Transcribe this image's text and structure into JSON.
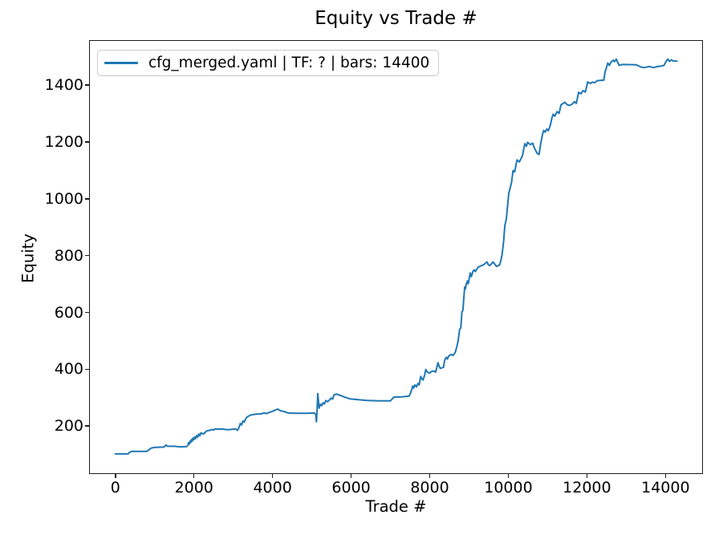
{
  "figure": {
    "title": "Equity vs Trade #",
    "xlabel": "Trade #",
    "ylabel": "Equity"
  },
  "legend": {
    "label": "cfg_merged.yaml | TF: ? | bars: 14400"
  },
  "colors": {
    "line": "#1f77b4",
    "spine": "#1a1a1a",
    "legend_border": "#cbcbcb",
    "text": "#000000"
  },
  "chart_data": {
    "type": "line",
    "title": "Equity vs Trade #",
    "xlabel": "Trade #",
    "ylabel": "Equity",
    "xlim": [
      -649,
      14932
    ],
    "ylim": [
      34,
      1556
    ],
    "x_ticks": [
      0,
      2000,
      4000,
      6000,
      8000,
      10000,
      12000,
      14000
    ],
    "y_ticks": [
      200,
      400,
      600,
      800,
      1000,
      1200,
      1400
    ],
    "grid": false,
    "legend_position": "upper-left",
    "series": [
      {
        "name": "cfg_merged.yaml | TF: ? | bars: 14400",
        "color": "#1f77b4",
        "points": [
          [
            0,
            102
          ],
          [
            320,
            102
          ],
          [
            360,
            107
          ],
          [
            420,
            111
          ],
          [
            800,
            111
          ],
          [
            860,
            117
          ],
          [
            920,
            123
          ],
          [
            1000,
            125
          ],
          [
            1240,
            126
          ],
          [
            1280,
            133
          ],
          [
            1330,
            129
          ],
          [
            1500,
            129
          ],
          [
            1650,
            127
          ],
          [
            1820,
            128
          ],
          [
            1851,
            134
          ],
          [
            1865,
            142
          ],
          [
            1885,
            137
          ],
          [
            1906,
            148
          ],
          [
            1925,
            143
          ],
          [
            1939,
            153
          ],
          [
            1958,
            147
          ],
          [
            1973,
            158
          ],
          [
            2000,
            152
          ],
          [
            2020,
            162
          ],
          [
            2045,
            156
          ],
          [
            2069,
            167
          ],
          [
            2095,
            161
          ],
          [
            2122,
            172
          ],
          [
            2150,
            166
          ],
          [
            2177,
            176
          ],
          [
            2240,
            172
          ],
          [
            2293,
            179
          ],
          [
            2327,
            183
          ],
          [
            2400,
            185
          ],
          [
            2463,
            188
          ],
          [
            2500,
            186
          ],
          [
            2531,
            190
          ],
          [
            2600,
            189
          ],
          [
            2700,
            190
          ],
          [
            2850,
            187
          ],
          [
            3000,
            189
          ],
          [
            3060,
            190
          ],
          [
            3110,
            185
          ],
          [
            3145,
            195
          ],
          [
            3178,
            209
          ],
          [
            3210,
            204
          ],
          [
            3245,
            218
          ],
          [
            3280,
            214
          ],
          [
            3310,
            224
          ],
          [
            3347,
            232
          ],
          [
            3400,
            236
          ],
          [
            3449,
            239
          ],
          [
            3520,
            241
          ],
          [
            3586,
            242
          ],
          [
            3700,
            243
          ],
          [
            3790,
            246
          ],
          [
            3850,
            244
          ],
          [
            3930,
            249
          ],
          [
            4000,
            252
          ],
          [
            4060,
            256
          ],
          [
            4130,
            260
          ],
          [
            4200,
            254
          ],
          [
            4300,
            251
          ],
          [
            4400,
            246
          ],
          [
            4600,
            245
          ],
          [
            4900,
            245
          ],
          [
            5060,
            246
          ],
          [
            5100,
            240
          ],
          [
            5116,
            215
          ],
          [
            5135,
            262
          ],
          [
            5151,
            314
          ],
          [
            5170,
            283
          ],
          [
            5184,
            263
          ],
          [
            5218,
            277
          ],
          [
            5250,
            272
          ],
          [
            5286,
            282
          ],
          [
            5320,
            278
          ],
          [
            5354,
            290
          ],
          [
            5400,
            286
          ],
          [
            5450,
            292
          ],
          [
            5490,
            299
          ],
          [
            5530,
            295
          ],
          [
            5558,
            309
          ],
          [
            5620,
            313
          ],
          [
            5680,
            310
          ],
          [
            5730,
            308
          ],
          [
            5830,
            302
          ],
          [
            5966,
            296
          ],
          [
            6170,
            293
          ],
          [
            6400,
            290
          ],
          [
            6700,
            289
          ],
          [
            7000,
            289
          ],
          [
            7088,
            302
          ],
          [
            7300,
            303
          ],
          [
            7480,
            306
          ],
          [
            7520,
            320
          ],
          [
            7545,
            330
          ],
          [
            7565,
            341
          ],
          [
            7590,
            334
          ],
          [
            7620,
            345
          ],
          [
            7660,
            338
          ],
          [
            7700,
            350
          ],
          [
            7730,
            345
          ],
          [
            7770,
            375
          ],
          [
            7800,
            366
          ],
          [
            7830,
            362
          ],
          [
            7870,
            380
          ],
          [
            7900,
            399
          ],
          [
            7940,
            390
          ],
          [
            7990,
            386
          ],
          [
            8040,
            392
          ],
          [
            8100,
            394
          ],
          [
            8150,
            390
          ],
          [
            8210,
            423
          ],
          [
            8240,
            410
          ],
          [
            8270,
            403
          ],
          [
            8310,
            405
          ],
          [
            8350,
            407
          ],
          [
            8380,
            432
          ],
          [
            8420,
            442
          ],
          [
            8450,
            436
          ],
          [
            8480,
            446
          ],
          [
            8540,
            452
          ],
          [
            8600,
            449
          ],
          [
            8650,
            460
          ],
          [
            8690,
            480
          ],
          [
            8720,
            498
          ],
          [
            8760,
            541
          ],
          [
            8790,
            545
          ],
          [
            8820,
            602
          ],
          [
            8845,
            608
          ],
          [
            8870,
            655
          ],
          [
            8890,
            690
          ],
          [
            8910,
            684
          ],
          [
            8930,
            700
          ],
          [
            8960,
            711
          ],
          [
            8980,
            701
          ],
          [
            9030,
            739
          ],
          [
            9060,
            726
          ],
          [
            9100,
            745
          ],
          [
            9130,
            750
          ],
          [
            9160,
            744
          ],
          [
            9230,
            759
          ],
          [
            9300,
            764
          ],
          [
            9370,
            768
          ],
          [
            9460,
            778
          ],
          [
            9490,
            768
          ],
          [
            9530,
            765
          ],
          [
            9610,
            778
          ],
          [
            9650,
            771
          ],
          [
            9700,
            762
          ],
          [
            9780,
            768
          ],
          [
            9810,
            783
          ],
          [
            9840,
            802
          ],
          [
            9880,
            850
          ],
          [
            9910,
            905
          ],
          [
            9950,
            930
          ],
          [
            9980,
            975
          ],
          [
            10010,
            1019
          ],
          [
            10050,
            1040
          ],
          [
            10080,
            1057
          ],
          [
            10120,
            1100
          ],
          [
            10160,
            1095
          ],
          [
            10220,
            1137
          ],
          [
            10280,
            1130
          ],
          [
            10360,
            1152
          ],
          [
            10420,
            1194
          ],
          [
            10460,
            1185
          ],
          [
            10490,
            1199
          ],
          [
            10560,
            1191
          ],
          [
            10620,
            1196
          ],
          [
            10660,
            1180
          ],
          [
            10730,
            1161
          ],
          [
            10780,
            1156
          ],
          [
            10830,
            1199
          ],
          [
            10870,
            1227
          ],
          [
            10900,
            1241
          ],
          [
            10940,
            1235
          ],
          [
            10980,
            1246
          ],
          [
            11020,
            1240
          ],
          [
            11070,
            1260
          ],
          [
            11110,
            1285
          ],
          [
            11140,
            1298
          ],
          [
            11180,
            1291
          ],
          [
            11240,
            1307
          ],
          [
            11290,
            1301
          ],
          [
            11340,
            1331
          ],
          [
            11440,
            1340
          ],
          [
            11500,
            1331
          ],
          [
            11560,
            1329
          ],
          [
            11620,
            1333
          ],
          [
            11680,
            1342
          ],
          [
            11730,
            1336
          ],
          [
            11790,
            1375
          ],
          [
            11850,
            1370
          ],
          [
            11900,
            1381
          ],
          [
            11960,
            1376
          ],
          [
            12020,
            1412
          ],
          [
            12080,
            1406
          ],
          [
            12140,
            1411
          ],
          [
            12200,
            1409
          ],
          [
            12260,
            1416
          ],
          [
            12430,
            1418
          ],
          [
            12460,
            1445
          ],
          [
            12530,
            1478
          ],
          [
            12570,
            1470
          ],
          [
            12610,
            1481
          ],
          [
            12670,
            1488
          ],
          [
            12700,
            1483
          ],
          [
            12750,
            1492
          ],
          [
            12790,
            1478
          ],
          [
            12820,
            1470
          ],
          [
            12900,
            1473
          ],
          [
            13250,
            1472
          ],
          [
            13380,
            1464
          ],
          [
            13450,
            1462
          ],
          [
            13590,
            1466
          ],
          [
            13690,
            1462
          ],
          [
            13800,
            1466
          ],
          [
            13900,
            1468
          ],
          [
            13960,
            1470
          ],
          [
            14030,
            1487
          ],
          [
            14060,
            1492
          ],
          [
            14100,
            1484
          ],
          [
            14150,
            1489
          ],
          [
            14200,
            1485
          ],
          [
            14290,
            1485
          ]
        ]
      }
    ]
  }
}
